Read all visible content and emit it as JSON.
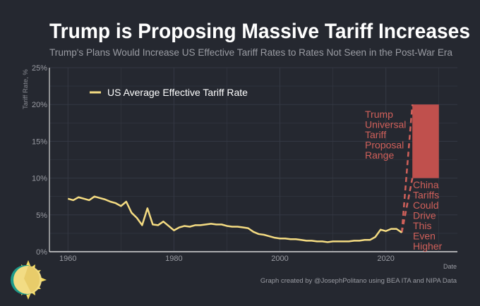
{
  "colors": {
    "background": "#252830",
    "line": "#f5dc82",
    "proposal": "#c0504d",
    "annotation": "#d0605a",
    "grid": "#353944",
    "axis": "#d8d8d8",
    "tick_text": "#9a9ca3"
  },
  "chart_data": {
    "type": "line",
    "title": "Trump is Proposing Massive Tariff Increases",
    "subtitle": "Trump's Plans Would Increase US Effective Tariff Rates to Rates Not Seen in the Post-War Era",
    "xlabel": "Date",
    "ylabel": "Tariff Rate, %",
    "xlim": [
      1956.5,
      2033.5
    ],
    "ylim": [
      0,
      25
    ],
    "xticks": [
      1960,
      1980,
      2000,
      2020
    ],
    "xtick_labels": [
      "1960",
      "1980",
      "2000",
      "2020"
    ],
    "yticks": [
      0,
      5,
      10,
      15,
      20,
      25
    ],
    "ytick_labels": [
      "0%",
      "5%",
      "10%",
      "15%",
      "20%",
      "25%"
    ],
    "grid": true,
    "legend_placement": "top-left",
    "series": [
      {
        "name": "US Average Effective Tariff Rate",
        "x": [
          1960,
          1961,
          1962,
          1963,
          1964,
          1965,
          1966,
          1967,
          1968,
          1969,
          1970,
          1971,
          1972,
          1973,
          1974,
          1975,
          1976,
          1977,
          1978,
          1979,
          1980,
          1981,
          1982,
          1983,
          1984,
          1985,
          1986,
          1987,
          1988,
          1989,
          1990,
          1991,
          1992,
          1993,
          1994,
          1995,
          1996,
          1997,
          1998,
          1999,
          2000,
          2001,
          2002,
          2003,
          2004,
          2005,
          2006,
          2007,
          2008,
          2009,
          2010,
          2011,
          2012,
          2013,
          2014,
          2015,
          2016,
          2017,
          2018,
          2019,
          2020,
          2021,
          2022,
          2023
        ],
        "y": [
          7.2,
          7.0,
          7.4,
          7.2,
          7.0,
          7.5,
          7.3,
          7.1,
          6.8,
          6.6,
          6.2,
          6.8,
          5.3,
          4.6,
          3.6,
          5.9,
          3.7,
          3.6,
          4.1,
          3.5,
          2.9,
          3.3,
          3.5,
          3.4,
          3.6,
          3.6,
          3.7,
          3.8,
          3.7,
          3.7,
          3.5,
          3.4,
          3.4,
          3.3,
          3.2,
          2.7,
          2.4,
          2.3,
          2.1,
          1.9,
          1.8,
          1.8,
          1.7,
          1.7,
          1.6,
          1.5,
          1.5,
          1.4,
          1.4,
          1.3,
          1.4,
          1.4,
          1.4,
          1.4,
          1.5,
          1.5,
          1.6,
          1.6,
          2.0,
          3.0,
          2.8,
          3.1,
          3.1,
          2.6
        ]
      }
    ],
    "proposal_range": {
      "x": [
        2025,
        2030
      ],
      "y": [
        10,
        20
      ],
      "from": [
        2023,
        2.6
      ]
    },
    "annotations": {
      "proposal": [
        "Trump",
        "Universal",
        "Tariff",
        "Proposal",
        "Range"
      ],
      "china": [
        "China",
        "Tariffs",
        "Could",
        "Drive",
        "This",
        "Even",
        "Higher"
      ]
    },
    "credit": "Graph created by @JosephPolitano using BEA ITA and NIPA Data"
  },
  "logo": {
    "icon": "sun-logo-icon"
  }
}
